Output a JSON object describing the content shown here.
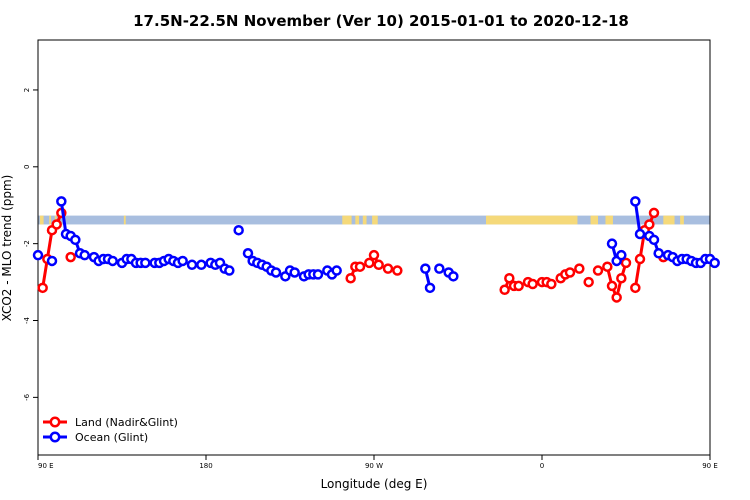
{
  "chart_data": {
    "type": "line",
    "title": "17.5N-22.5N November (Ver 10)   2015-01-01 to 2020-12-18",
    "xlabel": "Longitude (deg E)",
    "ylabel": "XCO2 - MLO trend (ppm)",
    "xlim": [
      90,
      450
    ],
    "ylim": [
      -7.5,
      3.3
    ],
    "x_ticks": [
      90,
      180,
      270,
      360,
      450,
      540
    ],
    "x_tick_labels": [
      "90 E",
      "180",
      "90 W",
      "0",
      "90 E",
      "180"
    ],
    "y_ticks": [
      2,
      0,
      -2,
      -4,
      -6
    ],
    "y_tick_labels": [
      "2",
      "0",
      "-2",
      "-4",
      "-6"
    ],
    "grid": false,
    "legend_position": "bottom-left",
    "land_ocean_strip": {
      "y_range": [
        -1.5,
        -1.27
      ],
      "ocean_color": "#a8bedf",
      "land_color": "#f5d97a",
      "land_segments": [
        [
          91,
          93
        ],
        [
          96,
          97
        ],
        [
          99,
          100
        ],
        [
          136,
          137
        ],
        [
          253,
          258
        ],
        [
          260,
          262
        ],
        [
          264,
          266
        ],
        [
          269,
          272
        ],
        [
          330,
          379
        ],
        [
          386,
          390
        ],
        [
          394,
          398
        ],
        [
          425,
          431
        ],
        [
          434,
          436
        ]
      ]
    },
    "series": [
      {
        "name": "Land (Nadir&Glint)",
        "color": "#ff0000",
        "points": [
          [
            92.5,
            -3.15
          ],
          [
            95,
            -2.4
          ],
          [
            97.5,
            -1.65
          ],
          [
            100,
            -1.5
          ],
          [
            102.5,
            -1.2
          ],
          [
            107.5,
            -2.35
          ],
          [
            257.5,
            -2.9
          ],
          [
            260,
            -2.6
          ],
          [
            262.5,
            -2.6
          ],
          [
            267.5,
            -2.5
          ],
          [
            270,
            -2.3
          ],
          [
            272.5,
            -2.55
          ],
          [
            277.5,
            -2.65
          ],
          [
            282.5,
            -2.7
          ],
          [
            340,
            -3.2
          ],
          [
            342.5,
            -2.9
          ],
          [
            345,
            -3.1
          ],
          [
            347.5,
            -3.1
          ],
          [
            352.5,
            -3.0
          ],
          [
            355,
            -3.05
          ],
          [
            360,
            -3.0
          ],
          [
            362.5,
            -3.0
          ],
          [
            365,
            -3.05
          ],
          [
            370,
            -2.9
          ],
          [
            372.5,
            -2.8
          ],
          [
            375,
            -2.75
          ],
          [
            380,
            -2.65
          ],
          [
            385,
            -3.0
          ],
          [
            390,
            -2.7
          ],
          [
            395,
            -2.6
          ],
          [
            397.5,
            -3.1
          ],
          [
            400,
            -3.4
          ],
          [
            402.5,
            -2.9
          ],
          [
            405,
            -2.5
          ],
          [
            410,
            -3.15
          ],
          [
            412.5,
            -2.4
          ],
          [
            415,
            -1.65
          ],
          [
            417.5,
            -1.5
          ],
          [
            420,
            -1.2
          ],
          [
            425,
            -2.35
          ]
        ]
      },
      {
        "name": "Ocean (Glint)",
        "color": "#0000ff",
        "points": [
          [
            90,
            -2.3
          ],
          [
            97.5,
            -2.45
          ],
          [
            102.5,
            -0.9
          ],
          [
            105,
            -1.75
          ],
          [
            107.5,
            -1.8
          ],
          [
            110,
            -1.9
          ],
          [
            112.5,
            -2.25
          ],
          [
            115,
            -2.3
          ],
          [
            120,
            -2.35
          ],
          [
            122.5,
            -2.45
          ],
          [
            125,
            -2.4
          ],
          [
            127.5,
            -2.4
          ],
          [
            130,
            -2.45
          ],
          [
            135,
            -2.5
          ],
          [
            137.5,
            -2.4
          ],
          [
            140,
            -2.4
          ],
          [
            142.5,
            -2.5
          ],
          [
            145,
            -2.5
          ],
          [
            147.5,
            -2.5
          ],
          [
            152.5,
            -2.5
          ],
          [
            155,
            -2.5
          ],
          [
            157.5,
            -2.45
          ],
          [
            160,
            -2.4
          ],
          [
            162.5,
            -2.45
          ],
          [
            165,
            -2.5
          ],
          [
            167.5,
            -2.45
          ],
          [
            172.5,
            -2.55
          ],
          [
            177.5,
            -2.55
          ],
          [
            182.5,
            -2.5
          ],
          [
            185,
            -2.55
          ],
          [
            187.5,
            -2.5
          ],
          [
            190,
            -2.65
          ],
          [
            192.5,
            -2.7
          ],
          [
            197.5,
            -1.65
          ],
          [
            202.5,
            -2.25
          ],
          [
            205,
            -2.45
          ],
          [
            207.5,
            -2.5
          ],
          [
            210,
            -2.55
          ],
          [
            212.5,
            -2.6
          ],
          [
            215,
            -2.7
          ],
          [
            217.5,
            -2.75
          ],
          [
            222.5,
            -2.85
          ],
          [
            225,
            -2.7
          ],
          [
            227.5,
            -2.75
          ],
          [
            232.5,
            -2.85
          ],
          [
            235,
            -2.8
          ],
          [
            237.5,
            -2.8
          ],
          [
            240,
            -2.8
          ],
          [
            245,
            -2.7
          ],
          [
            247.5,
            -2.8
          ],
          [
            250,
            -2.7
          ],
          [
            297.5,
            -2.65
          ],
          [
            300,
            -3.15
          ],
          [
            305,
            -2.65
          ],
          [
            310,
            -2.75
          ],
          [
            312.5,
            -2.85
          ],
          [
            397.5,
            -2.0
          ],
          [
            400,
            -2.45
          ],
          [
            402.5,
            -2.3
          ],
          [
            410,
            -0.9
          ],
          [
            412.5,
            -1.75
          ],
          [
            417.5,
            -1.8
          ],
          [
            420,
            -1.9
          ],
          [
            422.5,
            -2.25
          ],
          [
            427.5,
            -2.3
          ],
          [
            430,
            -2.35
          ],
          [
            432.5,
            -2.45
          ],
          [
            435,
            -2.4
          ],
          [
            437.5,
            -2.4
          ],
          [
            440,
            -2.45
          ],
          [
            442.5,
            -2.5
          ],
          [
            445,
            -2.5
          ],
          [
            447.5,
            -2.4
          ],
          [
            450,
            -2.4
          ],
          [
            452.5,
            -2.5
          ]
        ]
      }
    ]
  }
}
